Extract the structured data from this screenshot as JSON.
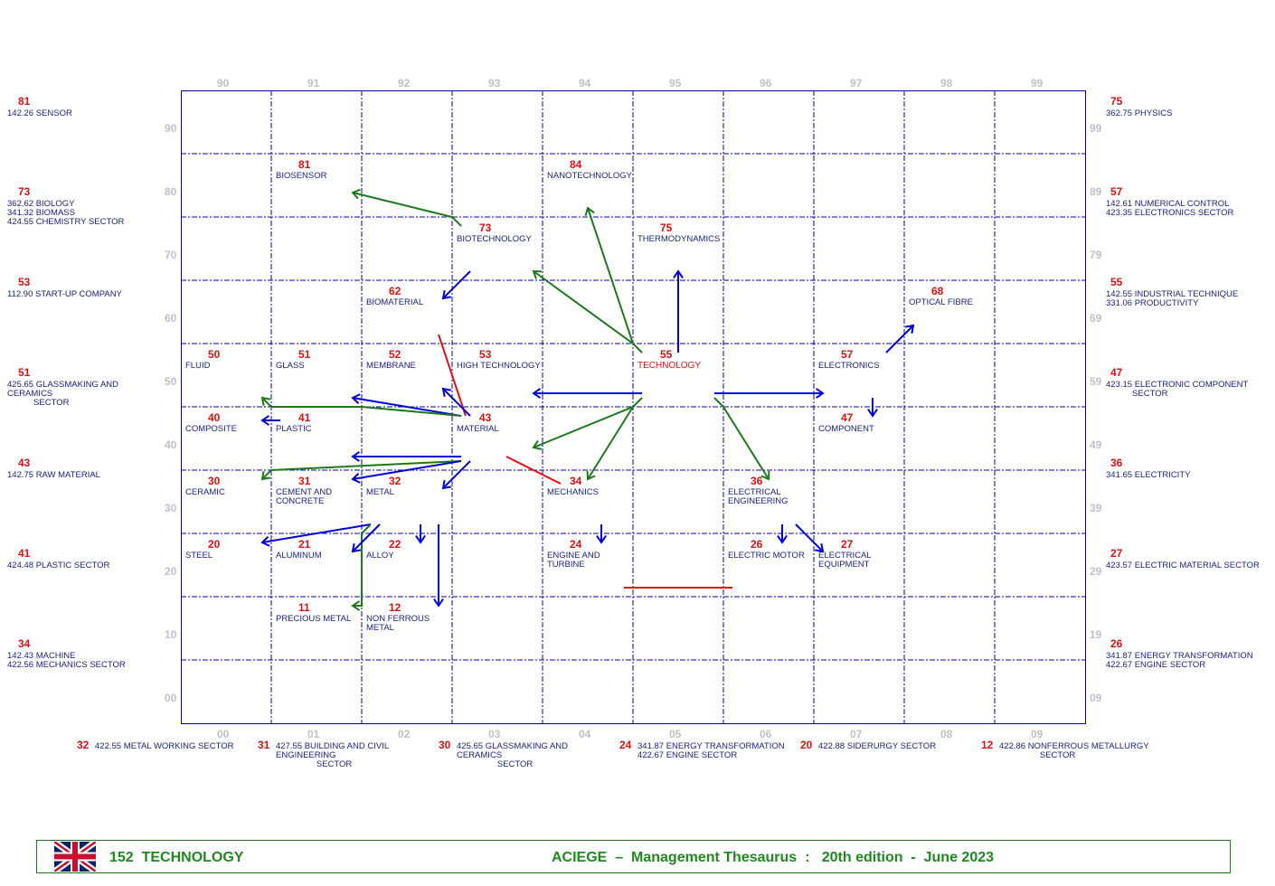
{
  "top_ticks": [
    "90",
    "91",
    "92",
    "93",
    "94",
    "95",
    "96",
    "97",
    "98",
    "99"
  ],
  "bottom_ticks": [
    "00",
    "01",
    "02",
    "03",
    "04",
    "05",
    "06",
    "07",
    "08",
    "09"
  ],
  "left_ticks": [
    "90",
    "80",
    "70",
    "60",
    "50",
    "40",
    "30",
    "20",
    "10",
    "00"
  ],
  "right_ticks": [
    "99",
    "89",
    "79",
    "69",
    "59",
    "49",
    "39",
    "29",
    "19",
    "09"
  ],
  "cells": [
    {
      "col": 1,
      "row": 1,
      "num": "81",
      "label": "BIOSENSOR"
    },
    {
      "col": 4,
      "row": 1,
      "num": "84",
      "label": "NANOTECHNOLOGY"
    },
    {
      "col": 3,
      "row": 2,
      "num": "73",
      "label": "BIOTECHNOLOGY"
    },
    {
      "col": 5,
      "row": 2,
      "num": "75",
      "label": "THERMODYNAMICS"
    },
    {
      "col": 2,
      "row": 3,
      "num": "62",
      "label": "BIOMATERIAL"
    },
    {
      "col": 8,
      "row": 3,
      "num": "68",
      "label": "OPTICAL FIBRE"
    },
    {
      "col": 0,
      "row": 4,
      "num": "50",
      "label": "FLUID"
    },
    {
      "col": 1,
      "row": 4,
      "num": "51",
      "label": "GLASS"
    },
    {
      "col": 2,
      "row": 4,
      "num": "52",
      "label": "MEMBRANE"
    },
    {
      "col": 3,
      "row": 4,
      "num": "53",
      "label": "HIGH TECHNOLOGY"
    },
    {
      "col": 5,
      "row": 4,
      "num": "55",
      "label": "TECHNOLOGY",
      "current": true
    },
    {
      "col": 7,
      "row": 4,
      "num": "57",
      "label": "ELECTRONICS"
    },
    {
      "col": 0,
      "row": 5,
      "num": "40",
      "label": "COMPOSITE"
    },
    {
      "col": 1,
      "row": 5,
      "num": "41",
      "label": "PLASTIC"
    },
    {
      "col": 3,
      "row": 5,
      "num": "43",
      "label": "MATERIAL"
    },
    {
      "col": 7,
      "row": 5,
      "num": "47",
      "label": "COMPONENT"
    },
    {
      "col": 0,
      "row": 6,
      "num": "30",
      "label": "CERAMIC"
    },
    {
      "col": 1,
      "row": 6,
      "num": "31",
      "label": "CEMENT AND\nCONCRETE"
    },
    {
      "col": 2,
      "row": 6,
      "num": "32",
      "label": "METAL"
    },
    {
      "col": 4,
      "row": 6,
      "num": "34",
      "label": "MECHANICS"
    },
    {
      "col": 6,
      "row": 6,
      "num": "36",
      "label": "ELECTRICAL\nENGINEERING"
    },
    {
      "col": 0,
      "row": 7,
      "num": "20",
      "label": "STEEL"
    },
    {
      "col": 1,
      "row": 7,
      "num": "21",
      "label": "ALUMINUM"
    },
    {
      "col": 2,
      "row": 7,
      "num": "22",
      "label": "ALLOY"
    },
    {
      "col": 4,
      "row": 7,
      "num": "24",
      "label": "ENGINE AND\nTURBINE"
    },
    {
      "col": 6,
      "row": 7,
      "num": "26",
      "label": "ELECTRIC MOTOR"
    },
    {
      "col": 7,
      "row": 7,
      "num": "27",
      "label": "ELECTRICAL\nEQUIPMENT"
    },
    {
      "col": 1,
      "row": 8,
      "num": "11",
      "label": "PRECIOUS METAL"
    },
    {
      "col": 2,
      "row": 8,
      "num": "12",
      "label": "NON FERROUS\nMETAL"
    }
  ],
  "left_refs": [
    {
      "num": "81",
      "text": "142.26 SENSOR"
    },
    {
      "num": "73",
      "text": "362.62 BIOLOGY\n341.32 BIOMASS\n424.55 CHEMISTRY SECTOR"
    },
    {
      "num": "53",
      "text": "112.90 START-UP COMPANY"
    },
    {
      "num": "51",
      "text": "425.65 GLASSMAKING AND CERAMICS\n           SECTOR"
    },
    {
      "num": "43",
      "text": "142.75 RAW MATERIAL"
    },
    {
      "num": "41",
      "text": "424.48 PLASTIC SECTOR"
    },
    {
      "num": "34",
      "text": "142.43 MACHINE\n422.56 MECHANICS SECTOR"
    }
  ],
  "right_refs": [
    {
      "num": "75",
      "text": "362.75 PHYSICS"
    },
    {
      "num": "57",
      "text": "142.61 NUMERICAL CONTROL\n423.35 ELECTRONICS SECTOR"
    },
    {
      "num": "55",
      "text": "142.55 INDUSTRIAL TECHNIQUE\n331.06 PRODUCTIVITY"
    },
    {
      "num": "47",
      "text": "423.15 ELECTRONIC COMPONENT\n           SECTOR"
    },
    {
      "num": "36",
      "text": "341.65 ELECTRICITY"
    },
    {
      "num": "27",
      "text": "423.57 ELECTRIC MATERIAL SECTOR"
    },
    {
      "num": "26",
      "text": "341.87 ENERGY TRANSFORMATION\n422.67 ENGINE SECTOR"
    }
  ],
  "bottom_refs": [
    {
      "num": "32",
      "text": "422.55 METAL WORKING SECTOR"
    },
    {
      "num": "31",
      "text": "427.55 BUILDING AND CIVIL ENGINEERING\n                 SECTOR"
    },
    {
      "num": "30",
      "text": "425.65 GLASSMAKING AND CERAMICS\n                 SECTOR"
    },
    {
      "num": "24",
      "text": "341.87 ENERGY TRANSFORMATION\n422.67 ENGINE SECTOR"
    },
    {
      "num": "20",
      "text": "422.88 SIDERURGY SECTOR"
    },
    {
      "num": "12",
      "text": "422.86 NONFERROUS METALLURGY\n                 SECTOR"
    }
  ],
  "footer": {
    "flag_icon": "uk-flag-icon",
    "topic": "152  TECHNOLOGY",
    "title": "ACIEGE  –  Management Thesaurus  :   20th edition  -  June 2023"
  },
  "colors": {
    "number": "#e01010",
    "label": "#1a237e",
    "grid": "#0000aa",
    "broader": "#0000dd",
    "narrower": "#1a7a1a",
    "related": "#dd1111",
    "footer": "#1e8a1e"
  }
}
